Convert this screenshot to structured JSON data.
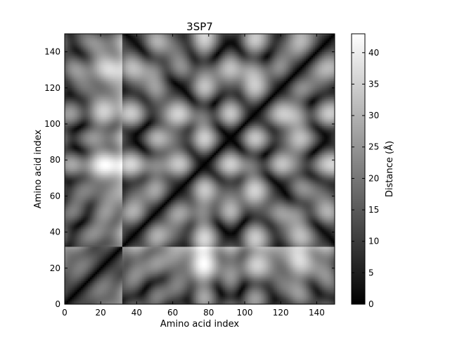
{
  "chart_data": {
    "type": "heatmap",
    "title": "3SP7",
    "xlabel": "Amino acid index",
    "ylabel": "Amino acid index",
    "xlim": [
      0,
      150
    ],
    "ylim": [
      0,
      150
    ],
    "x_ticks": [
      0,
      20,
      40,
      60,
      80,
      100,
      120,
      140
    ],
    "y_ticks": [
      0,
      20,
      40,
      60,
      80,
      100,
      120,
      140
    ],
    "colorbar": {
      "label": "Distance (Å)",
      "range": [
        0,
        43
      ],
      "ticks": [
        0,
        5,
        10,
        15,
        20,
        25,
        30,
        35,
        40
      ],
      "colormap": "gray"
    },
    "matrix_size": 150,
    "diagonal_value": 0,
    "domain_boundary_index": 32,
    "description_of_values": "pairwise residue distance matrix; symmetric, zero on diagonal"
  },
  "colors": {
    "cmap_low": "#000000",
    "cmap_high": "#ffffff",
    "axis": "#000000"
  }
}
